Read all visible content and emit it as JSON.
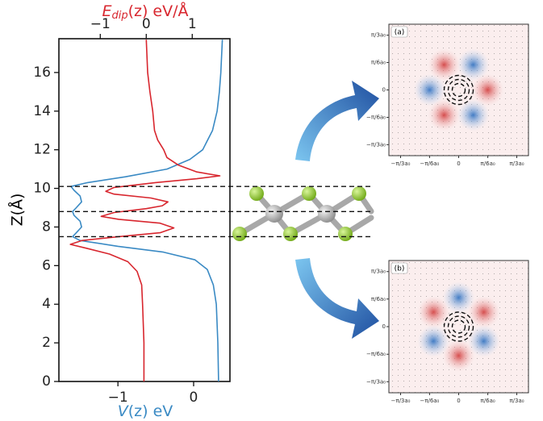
{
  "chart_data": {
    "type": "line",
    "xlabel": {
      "main": "V",
      "rest": "(z) eV"
    },
    "x2label": {
      "main": "E",
      "sub": "dip",
      "rest": "(z) eV/Å"
    },
    "ylabel": "Z(Å)",
    "xlim": [
      -1.78,
      0.48
    ],
    "xticks": [
      {
        "value": -1,
        "label": "−1"
      },
      0
    ],
    "x2lim": [
      -1.9,
      1.82
    ],
    "x2ticks": [
      {
        "value": -1,
        "label": "−1"
      },
      0,
      1
    ],
    "ylim": [
      0,
      17.75
    ],
    "yticks": [
      0,
      2,
      4,
      6,
      8,
      10,
      12,
      14,
      16
    ],
    "hlines": [
      10.1,
      8.8,
      7.5
    ],
    "series": [
      {
        "color": "#3a8ac4",
        "axis": "x",
        "x": [
          0.33,
          0.32,
          0.3,
          0.26,
          0.18,
          0.02,
          -0.4,
          -1.0,
          -1.5,
          -1.6,
          -1.55,
          -1.48,
          -1.5,
          -1.58,
          -1.6,
          -1.55,
          -1.48,
          -1.5,
          -1.58,
          -1.62,
          -1.4,
          -0.9,
          -0.35,
          -0.05,
          0.12,
          0.25,
          0.31,
          0.34,
          0.36,
          0.38
        ],
        "z": [
          0,
          2,
          4,
          5,
          5.8,
          6.3,
          6.7,
          7.0,
          7.3,
          7.5,
          7.7,
          8.0,
          8.3,
          8.6,
          8.8,
          9.0,
          9.3,
          9.6,
          9.9,
          10.1,
          10.3,
          10.6,
          11.0,
          11.5,
          12,
          13,
          14,
          15,
          16,
          17.7
        ]
      },
      {
        "color": "#d8262e",
        "axis": "x2",
        "x": [
          -0.05,
          -0.05,
          -0.08,
          -0.1,
          -0.2,
          -0.4,
          -0.8,
          -1.3,
          -1.65,
          -1.4,
          -0.6,
          0.3,
          0.6,
          0.3,
          -0.6,
          -0.98,
          -0.7,
          0.0,
          0.35,
          0.47,
          0.1,
          -0.7,
          -0.88,
          -0.7,
          0.2,
          1.1,
          1.6,
          1.1,
          0.7,
          0.45,
          0.38,
          0.25,
          0.18,
          0.14,
          0.08,
          0.03,
          0.0
        ],
        "z": [
          0,
          2,
          4,
          5,
          5.7,
          6.2,
          6.6,
          6.9,
          7.1,
          7.3,
          7.5,
          7.7,
          7.95,
          8.2,
          8.4,
          8.55,
          8.75,
          8.95,
          9.1,
          9.3,
          9.5,
          9.7,
          9.85,
          10.05,
          10.3,
          10.5,
          10.65,
          10.85,
          11.2,
          11.6,
          12,
          12.5,
          13,
          14,
          15,
          16,
          17.7
        ]
      }
    ]
  },
  "panels": [
    {
      "label": "(a)",
      "xlim": [
        -0.4,
        0.4
      ],
      "ylim": [
        -0.4,
        0.4
      ],
      "xticks": [
        {
          "value": -0.333,
          "label": "−π/3a₀"
        },
        {
          "value": -0.167,
          "label": "−π/6a₀"
        },
        0,
        {
          "value": 0.167,
          "label": "π/6a₀"
        },
        {
          "value": 0.333,
          "label": "π/3a₀"
        }
      ],
      "yticks": [
        {
          "value": 0.333,
          "label": "π/3a₀"
        },
        {
          "value": 0.167,
          "label": "π/6a₀"
        },
        0,
        {
          "value": -0.167,
          "label": "−π/6a₀"
        },
        {
          "value": -0.333,
          "label": "−π/3a₀"
        }
      ]
    },
    {
      "label": "(b)",
      "xlim": [
        -0.4,
        0.4
      ],
      "ylim": [
        -0.4,
        0.4
      ],
      "xticks": [
        {
          "value": -0.333,
          "label": "−π/3a₀"
        },
        {
          "value": -0.167,
          "label": "−π/6a₀"
        },
        0,
        {
          "value": 0.167,
          "label": "π/6a₀"
        },
        {
          "value": 0.333,
          "label": "π/3a₀"
        }
      ],
      "yticks": [
        {
          "value": 0.333,
          "label": "π/3a₀"
        },
        {
          "value": 0.167,
          "label": "π/6a₀"
        },
        0,
        {
          "value": -0.167,
          "label": "−π/6a₀"
        },
        {
          "value": -0.333,
          "label": "−π/3a₀"
        }
      ]
    }
  ]
}
